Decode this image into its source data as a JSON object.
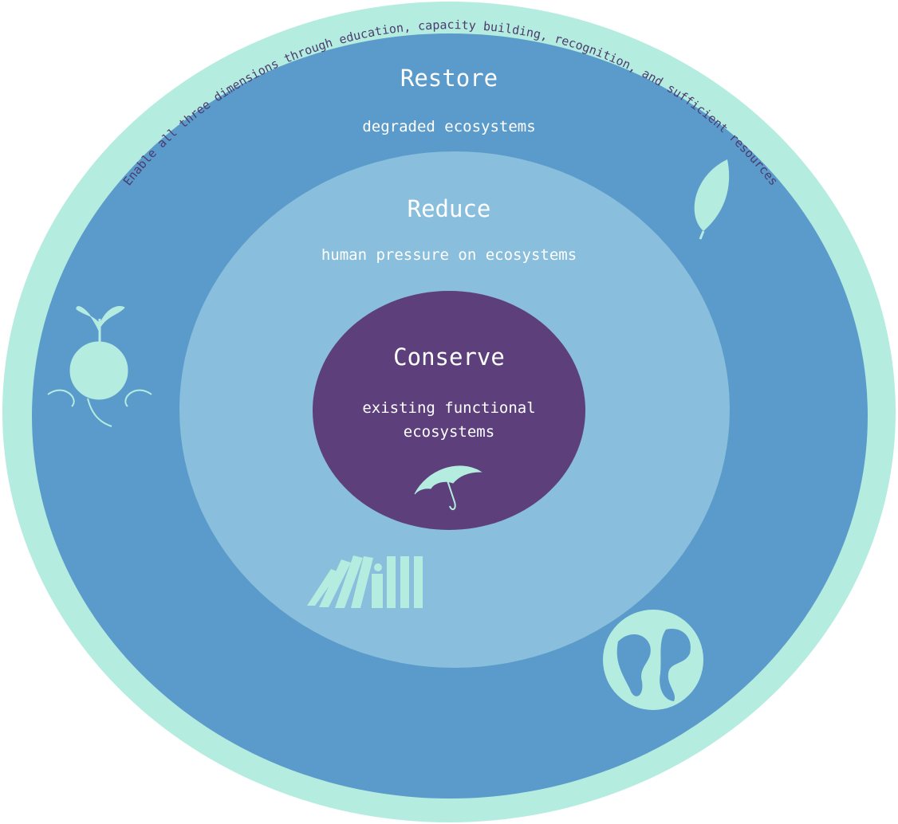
{
  "ring_text": "Enable all three dimensions through education, capacity building, recognition, and sufficient resources",
  "restore": {
    "title": "Restore",
    "subtitle": "degraded ecosystems"
  },
  "reduce": {
    "title": "Reduce",
    "subtitle": "human pressure on ecosystems"
  },
  "conserve": {
    "title": "Conserve",
    "subtitle_lines": [
      "existing functional",
      "ecosystems"
    ]
  }
}
